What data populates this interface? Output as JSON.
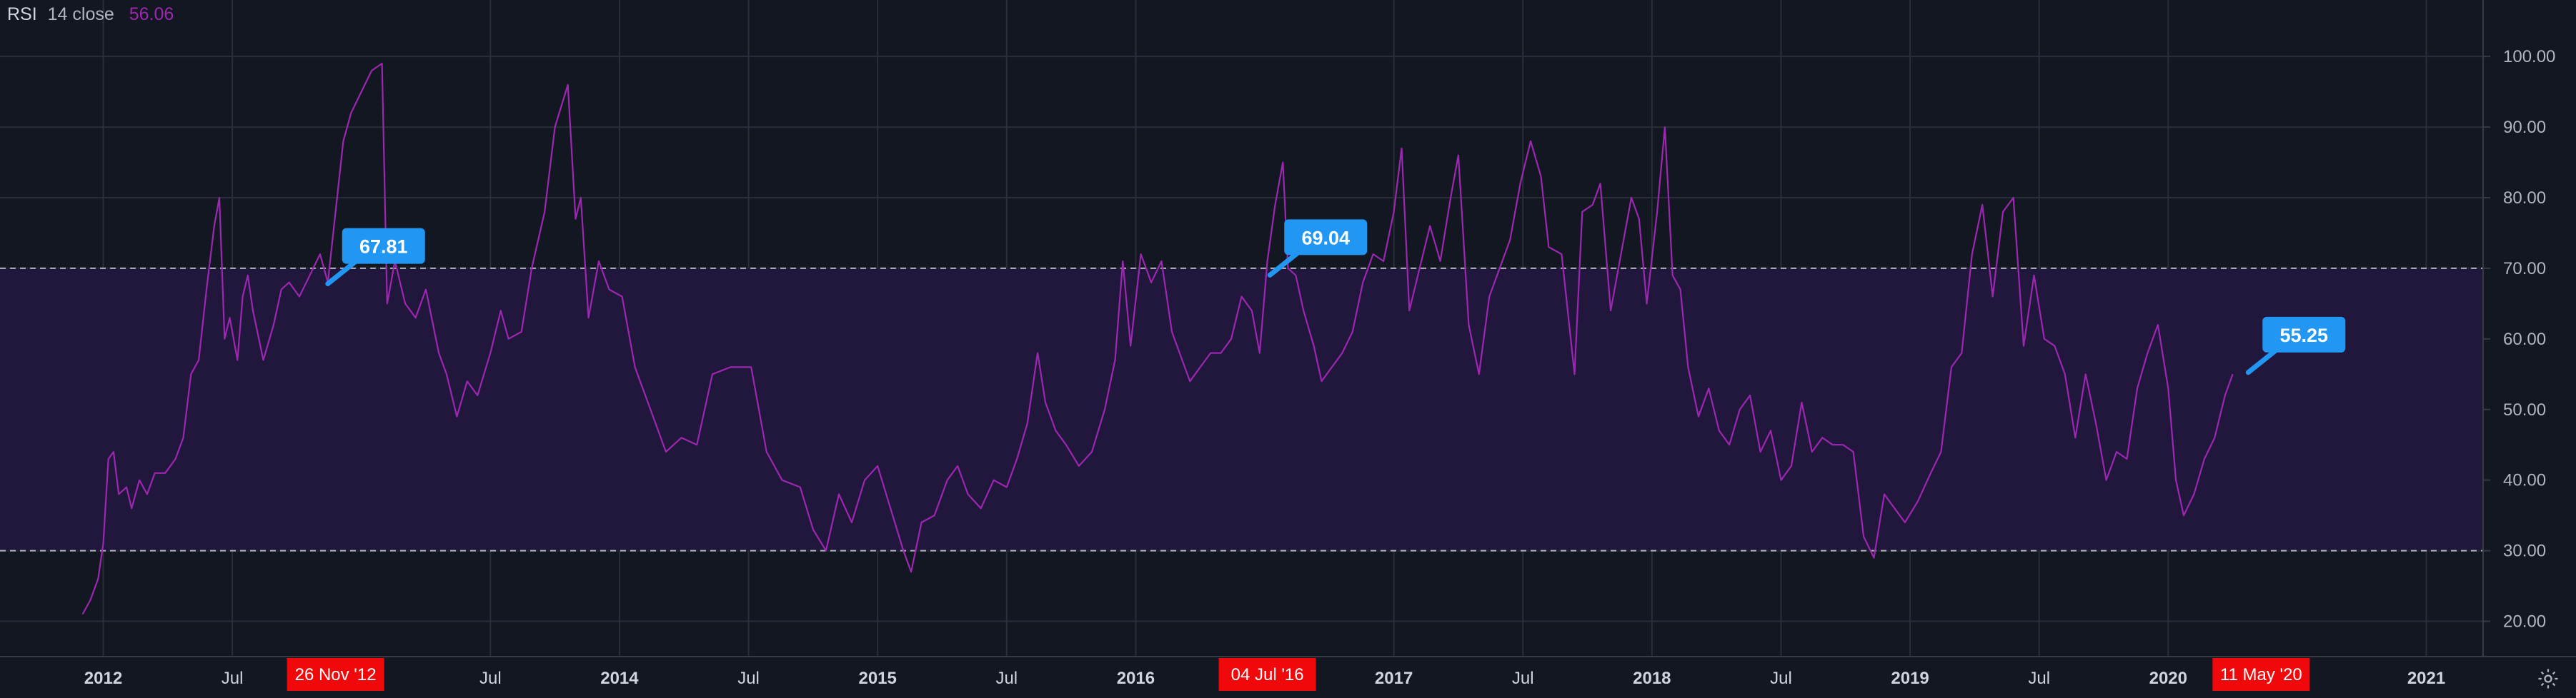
{
  "legend": {
    "title": "RSI",
    "params": "14 close",
    "value": "56.06"
  },
  "colors": {
    "background": "#131722",
    "grid": "#2a2e39",
    "line": "#9c27b0",
    "band": "#21163b",
    "band_line": "#b2b5be",
    "flag": "#f0080a",
    "callout": "#2196f3"
  },
  "chart_data": {
    "type": "line",
    "title": "",
    "series": [
      {
        "values": [
          [
            2011.92,
            21
          ],
          [
            2011.95,
            23
          ],
          [
            2011.98,
            26
          ],
          [
            2012.0,
            31
          ],
          [
            2012.02,
            43
          ],
          [
            2012.04,
            44
          ],
          [
            2012.06,
            38
          ],
          [
            2012.09,
            39
          ],
          [
            2012.11,
            36
          ],
          [
            2012.14,
            40
          ],
          [
            2012.17,
            38
          ],
          [
            2012.2,
            41
          ],
          [
            2012.24,
            41
          ],
          [
            2012.28,
            43
          ],
          [
            2012.31,
            46
          ],
          [
            2012.34,
            55
          ],
          [
            2012.37,
            57
          ],
          [
            2012.4,
            67
          ],
          [
            2012.43,
            76
          ],
          [
            2012.45,
            80
          ],
          [
            2012.47,
            60
          ],
          [
            2012.49,
            63
          ],
          [
            2012.52,
            57
          ],
          [
            2012.54,
            66
          ],
          [
            2012.56,
            69
          ],
          [
            2012.58,
            64
          ],
          [
            2012.62,
            57
          ],
          [
            2012.66,
            62
          ],
          [
            2012.69,
            67
          ],
          [
            2012.72,
            68
          ],
          [
            2012.76,
            66
          ],
          [
            2012.8,
            69
          ],
          [
            2012.84,
            72
          ],
          [
            2012.87,
            68
          ],
          [
            2012.9,
            78
          ],
          [
            2012.93,
            88
          ],
          [
            2012.96,
            92
          ],
          [
            2013.0,
            95
          ],
          [
            2013.04,
            98
          ],
          [
            2013.08,
            99
          ],
          [
            2013.1,
            65
          ],
          [
            2013.13,
            71
          ],
          [
            2013.17,
            65
          ],
          [
            2013.21,
            63
          ],
          [
            2013.25,
            67
          ],
          [
            2013.3,
            58
          ],
          [
            2013.33,
            55
          ],
          [
            2013.37,
            49
          ],
          [
            2013.41,
            54
          ],
          [
            2013.45,
            52
          ],
          [
            2013.5,
            58
          ],
          [
            2013.54,
            64
          ],
          [
            2013.57,
            60
          ],
          [
            2013.62,
            61
          ],
          [
            2013.66,
            70
          ],
          [
            2013.71,
            78
          ],
          [
            2013.75,
            90
          ],
          [
            2013.8,
            96
          ],
          [
            2013.83,
            77
          ],
          [
            2013.85,
            80
          ],
          [
            2013.88,
            63
          ],
          [
            2013.92,
            71
          ],
          [
            2013.96,
            67
          ],
          [
            2014.01,
            66
          ],
          [
            2014.06,
            56
          ],
          [
            2014.12,
            50
          ],
          [
            2014.18,
            44
          ],
          [
            2014.24,
            46
          ],
          [
            2014.3,
            45
          ],
          [
            2014.36,
            55
          ],
          [
            2014.43,
            56
          ],
          [
            2014.51,
            56
          ],
          [
            2014.57,
            44
          ],
          [
            2014.63,
            40
          ],
          [
            2014.7,
            39
          ],
          [
            2014.75,
            33
          ],
          [
            2014.8,
            30
          ],
          [
            2014.85,
            38
          ],
          [
            2014.9,
            34
          ],
          [
            2014.95,
            40
          ],
          [
            2015.0,
            42
          ],
          [
            2015.05,
            36
          ],
          [
            2015.1,
            30
          ],
          [
            2015.13,
            27
          ],
          [
            2015.17,
            34
          ],
          [
            2015.22,
            35
          ],
          [
            2015.27,
            40
          ],
          [
            2015.31,
            42
          ],
          [
            2015.35,
            38
          ],
          [
            2015.4,
            36
          ],
          [
            2015.45,
            40
          ],
          [
            2015.5,
            39
          ],
          [
            2015.54,
            43
          ],
          [
            2015.58,
            48
          ],
          [
            2015.62,
            58
          ],
          [
            2015.65,
            51
          ],
          [
            2015.69,
            47
          ],
          [
            2015.73,
            45
          ],
          [
            2015.78,
            42
          ],
          [
            2015.83,
            44
          ],
          [
            2015.88,
            50
          ],
          [
            2015.92,
            57
          ],
          [
            2015.95,
            71
          ],
          [
            2015.98,
            59
          ],
          [
            2016.02,
            72
          ],
          [
            2016.06,
            68
          ],
          [
            2016.1,
            71
          ],
          [
            2016.14,
            61
          ],
          [
            2016.17,
            58
          ],
          [
            2016.21,
            54
          ],
          [
            2016.25,
            56
          ],
          [
            2016.29,
            58
          ],
          [
            2016.33,
            58
          ],
          [
            2016.37,
            60
          ],
          [
            2016.41,
            66
          ],
          [
            2016.45,
            64
          ],
          [
            2016.48,
            58
          ],
          [
            2016.51,
            71
          ],
          [
            2016.54,
            79
          ],
          [
            2016.57,
            85
          ],
          [
            2016.59,
            70
          ],
          [
            2016.62,
            69
          ],
          [
            2016.65,
            64
          ],
          [
            2016.69,
            59
          ],
          [
            2016.72,
            54
          ],
          [
            2016.76,
            56
          ],
          [
            2016.8,
            58
          ],
          [
            2016.84,
            61
          ],
          [
            2016.88,
            68
          ],
          [
            2016.92,
            72
          ],
          [
            2016.96,
            71
          ],
          [
            2017.0,
            78
          ],
          [
            2017.03,
            87
          ],
          [
            2017.06,
            64
          ],
          [
            2017.1,
            70
          ],
          [
            2017.14,
            76
          ],
          [
            2017.18,
            71
          ],
          [
            2017.22,
            80
          ],
          [
            2017.25,
            86
          ],
          [
            2017.29,
            62
          ],
          [
            2017.33,
            55
          ],
          [
            2017.37,
            66
          ],
          [
            2017.41,
            70
          ],
          [
            2017.45,
            74
          ],
          [
            2017.49,
            82
          ],
          [
            2017.53,
            88
          ],
          [
            2017.57,
            83
          ],
          [
            2017.6,
            73
          ],
          [
            2017.65,
            72
          ],
          [
            2017.7,
            55
          ],
          [
            2017.73,
            78
          ],
          [
            2017.77,
            79
          ],
          [
            2017.8,
            82
          ],
          [
            2017.84,
            64
          ],
          [
            2017.88,
            72
          ],
          [
            2017.92,
            80
          ],
          [
            2017.95,
            77
          ],
          [
            2017.98,
            65
          ],
          [
            2018.02,
            78
          ],
          [
            2018.05,
            90
          ],
          [
            2018.08,
            69
          ],
          [
            2018.11,
            67
          ],
          [
            2018.14,
            56
          ],
          [
            2018.18,
            49
          ],
          [
            2018.22,
            53
          ],
          [
            2018.26,
            47
          ],
          [
            2018.3,
            45
          ],
          [
            2018.34,
            50
          ],
          [
            2018.38,
            52
          ],
          [
            2018.42,
            44
          ],
          [
            2018.46,
            47
          ],
          [
            2018.5,
            40
          ],
          [
            2018.54,
            42
          ],
          [
            2018.58,
            51
          ],
          [
            2018.62,
            44
          ],
          [
            2018.66,
            46
          ],
          [
            2018.7,
            45
          ],
          [
            2018.74,
            45
          ],
          [
            2018.78,
            44
          ],
          [
            2018.82,
            32
          ],
          [
            2018.86,
            29
          ],
          [
            2018.9,
            38
          ],
          [
            2018.94,
            36
          ],
          [
            2018.98,
            34
          ],
          [
            2019.03,
            37
          ],
          [
            2019.08,
            41
          ],
          [
            2019.12,
            44
          ],
          [
            2019.16,
            56
          ],
          [
            2019.2,
            58
          ],
          [
            2019.24,
            72
          ],
          [
            2019.28,
            79
          ],
          [
            2019.32,
            66
          ],
          [
            2019.36,
            78
          ],
          [
            2019.4,
            80
          ],
          [
            2019.44,
            59
          ],
          [
            2019.48,
            69
          ],
          [
            2019.52,
            60
          ],
          [
            2019.56,
            59
          ],
          [
            2019.6,
            55
          ],
          [
            2019.64,
            46
          ],
          [
            2019.68,
            55
          ],
          [
            2019.72,
            48
          ],
          [
            2019.76,
            40
          ],
          [
            2019.8,
            44
          ],
          [
            2019.84,
            43
          ],
          [
            2019.88,
            53
          ],
          [
            2019.92,
            58
          ],
          [
            2019.96,
            62
          ],
          [
            2020.0,
            53
          ],
          [
            2020.03,
            40
          ],
          [
            2020.06,
            35
          ],
          [
            2020.1,
            38
          ],
          [
            2020.14,
            43
          ],
          [
            2020.18,
            46
          ],
          [
            2020.22,
            52
          ],
          [
            2020.25,
            55
          ]
        ]
      }
    ],
    "y_ticks": [
      "20.00",
      "30.00",
      "40.00",
      "50.00",
      "60.00",
      "70.00",
      "80.00",
      "90.00",
      "100.00"
    ],
    "ylim": [
      15,
      108
    ],
    "xlim": [
      2011.6,
      2021.22
    ],
    "x_ticks": [
      {
        "label": "2012",
        "pos": 2012.0,
        "bold": true
      },
      {
        "label": "Jul",
        "pos": 2012.5,
        "bold": false
      },
      {
        "label": "Jul",
        "pos": 2013.5,
        "bold": false
      },
      {
        "label": "2014",
        "pos": 2014.0,
        "bold": true
      },
      {
        "label": "Jul",
        "pos": 2014.5,
        "bold": false
      },
      {
        "label": "2015",
        "pos": 2015.0,
        "bold": true
      },
      {
        "label": "Jul",
        "pos": 2015.5,
        "bold": false
      },
      {
        "label": "2016",
        "pos": 2016.0,
        "bold": true
      },
      {
        "label": "2017",
        "pos": 2017.0,
        "bold": true
      },
      {
        "label": "Jul",
        "pos": 2017.5,
        "bold": false
      },
      {
        "label": "2018",
        "pos": 2018.0,
        "bold": true
      },
      {
        "label": "Jul",
        "pos": 2018.5,
        "bold": false
      },
      {
        "label": "2019",
        "pos": 2019.0,
        "bold": true
      },
      {
        "label": "Jul",
        "pos": 2019.5,
        "bold": false
      },
      {
        "label": "2020",
        "pos": 2020.0,
        "bold": true
      },
      {
        "label": "2021",
        "pos": 2021.0,
        "bold": true
      }
    ],
    "date_flags": [
      {
        "label": "26 Nov '12",
        "pos": 2012.9
      },
      {
        "label": "04 Jul '16",
        "pos": 2016.51
      },
      {
        "label": "11 May '20",
        "pos": 2020.36
      }
    ],
    "callouts": [
      {
        "label": "67.81",
        "x": 2012.87,
        "y": 67.81
      },
      {
        "label": "69.04",
        "x": 2016.52,
        "y": 69.04
      },
      {
        "label": "55.25",
        "x": 2020.31,
        "y": 55.25
      }
    ],
    "bands": {
      "upper": 70,
      "lower": 30
    },
    "grid": true
  }
}
